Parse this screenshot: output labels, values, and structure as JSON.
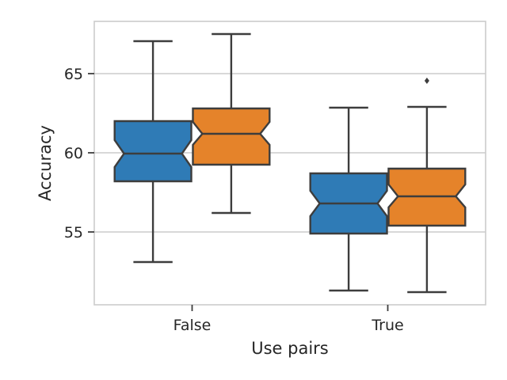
{
  "chart_data": {
    "type": "boxplot",
    "notched": true,
    "title": "",
    "xlabel": "Use pairs",
    "ylabel": "Accuracy",
    "categories": [
      "False",
      "True"
    ],
    "yticks": [
      55,
      60,
      65
    ],
    "ylim": [
      50.4,
      68.3
    ],
    "grid": "horizontal",
    "series": [
      {
        "color": "#2f7bb6",
        "boxes": [
          {
            "category": "False",
            "whisker_low": 53.1,
            "q1": 58.2,
            "median": 59.95,
            "q3": 62.0,
            "whisker_high": 67.05,
            "notch_low": 59.1,
            "notch_high": 60.8,
            "outliers": []
          },
          {
            "category": "True",
            "whisker_low": 51.3,
            "q1": 54.9,
            "median": 56.8,
            "q3": 58.7,
            "whisker_high": 62.85,
            "notch_low": 56.0,
            "notch_high": 57.6,
            "outliers": []
          }
        ]
      },
      {
        "color": "#e5832a",
        "boxes": [
          {
            "category": "False",
            "whisker_low": 56.2,
            "q1": 59.25,
            "median": 61.2,
            "q3": 62.8,
            "whisker_high": 67.5,
            "notch_low": 60.5,
            "notch_high": 61.95,
            "outliers": []
          },
          {
            "category": "True",
            "whisker_low": 51.2,
            "q1": 55.4,
            "median": 57.25,
            "q3": 59.0,
            "whisker_high": 62.9,
            "notch_low": 56.55,
            "notch_high": 58.0,
            "outliers": [
              64.55
            ]
          }
        ]
      }
    ]
  }
}
